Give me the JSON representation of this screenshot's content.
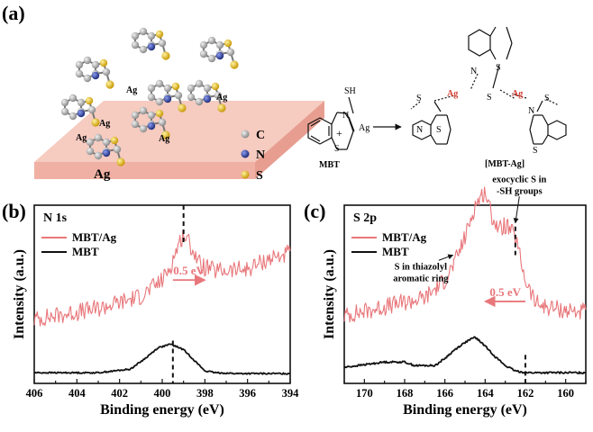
{
  "figure": {
    "panel_a": {
      "label": "(a)",
      "surface_label": "Ag",
      "bond_labels": [
        "Ag",
        "Ag",
        "Ag",
        "Ag",
        "Ag"
      ],
      "atom_legend": [
        {
          "symbol": "C",
          "color": "#a8a8a8"
        },
        {
          "symbol": "N",
          "color": "#2e3f9e"
        },
        {
          "symbol": "S",
          "color": "#e8c21a"
        }
      ],
      "reaction": {
        "reactant_name": "MBT",
        "reactant_sh": "SH",
        "reactant_ring_s": "S",
        "reactant_ring_n": "N",
        "plus": "+",
        "metal": "Ag",
        "product_name": "[MBT-Ag]",
        "product_atoms": {
          "s_exo_left": "S",
          "n_left": "N",
          "s_ring_left": "S",
          "ag_left": "Ag",
          "n_mid": "N",
          "s_ring_mid": "S",
          "s_exo_mid": "S",
          "ag_right": "Ag",
          "n_right": "N",
          "s_ring_right": "S",
          "s_exo_right": "S"
        }
      }
    },
    "panel_b_label": "(b)",
    "panel_c_label": "(c)"
  },
  "chart_data": [
    {
      "panel": "(b)",
      "type": "line",
      "title": "N 1s",
      "xlabel": "Binding energy (eV)",
      "ylabel": "Intensity (a.u.)",
      "x_reversed": true,
      "xlim": [
        406,
        394
      ],
      "xticks": [
        406,
        404,
        402,
        400,
        398,
        396,
        394
      ],
      "y_ticks_labeled": false,
      "legend_position": "top-left",
      "series": [
        {
          "name": "MBT/Ag",
          "color": "#e8777b",
          "noise": 0.05,
          "x": [
            406,
            403,
            401,
            400,
            399.6,
            399.3,
            399.0,
            398.6,
            398.2,
            397.5,
            396,
            395,
            394
          ],
          "y": [
            0.36,
            0.42,
            0.49,
            0.58,
            0.66,
            0.76,
            0.84,
            0.76,
            0.66,
            0.63,
            0.64,
            0.7,
            0.73
          ]
        },
        {
          "name": "MBT",
          "color": "#111111",
          "noise": 0.004,
          "x": [
            406,
            403,
            401.5,
            400.8,
            400.2,
            399.6,
            399.0,
            398.5,
            398.0,
            397.5,
            396.5,
            394
          ],
          "y": [
            0.06,
            0.06,
            0.08,
            0.14,
            0.2,
            0.22,
            0.19,
            0.13,
            0.07,
            0.06,
            0.055,
            0.055
          ]
        }
      ],
      "annotations": [
        {
          "type": "vline",
          "x": 399.0,
          "y_from": 0.78,
          "y_to": 1.0
        },
        {
          "type": "vline",
          "x": 399.5,
          "y_from": 0.0,
          "y_to": 0.24
        },
        {
          "type": "arrow",
          "text": "0.5 eV",
          "x_from": 399.5,
          "x_to": 398.0,
          "y": 0.58
        }
      ]
    },
    {
      "panel": "(c)",
      "type": "line",
      "title": "S 2p",
      "xlabel": "Binding energy (eV)",
      "ylabel": "Intensity (a.u.)",
      "x_reversed": true,
      "xlim": [
        171,
        159
      ],
      "xticks": [
        170,
        168,
        166,
        164,
        162,
        160
      ],
      "y_ticks_labeled": false,
      "legend_position": "top-left",
      "series": [
        {
          "name": "MBT/Ag",
          "color": "#e8777b",
          "noise": 0.05,
          "x": [
            171,
            169,
            167,
            166,
            165.5,
            165,
            164.5,
            164.0,
            163.7,
            163.3,
            163.0,
            162.5,
            162.0,
            161.5,
            161,
            160,
            159
          ],
          "y": [
            0.38,
            0.43,
            0.48,
            0.58,
            0.68,
            0.82,
            1.0,
            1.08,
            0.95,
            0.86,
            0.89,
            0.82,
            0.58,
            0.45,
            0.43,
            0.41,
            0.4
          ]
        },
        {
          "name": "MBT",
          "color": "#111111",
          "noise": 0.005,
          "x": [
            171,
            169,
            168,
            167.5,
            166.5,
            166,
            165.5,
            165.0,
            164.5,
            164.0,
            163.5,
            163.0,
            162.5,
            162.0,
            161,
            159
          ],
          "y": [
            0.09,
            0.12,
            0.12,
            0.1,
            0.1,
            0.14,
            0.19,
            0.23,
            0.26,
            0.21,
            0.15,
            0.1,
            0.07,
            0.06,
            0.06,
            0.06
          ]
        }
      ],
      "annotations": [
        {
          "type": "vline",
          "x": 162.5,
          "y_from": 0.72,
          "y_to": 0.88
        },
        {
          "type": "vline",
          "x": 162.0,
          "y_from": 0.0,
          "y_to": 0.16
        },
        {
          "type": "arrow",
          "text": "0.5 eV",
          "x_from": 162.0,
          "x_to": 164.0,
          "y": 0.46
        },
        {
          "type": "label",
          "lines": [
            "S  in thiazolyl",
            "aromatic ring"
          ],
          "x": 167.2,
          "y": 0.64,
          "arrow_to": [
            165.6,
            0.72
          ]
        },
        {
          "type": "label",
          "lines": [
            "exocyclic S in",
            "-SH groups"
          ],
          "x": 162.3,
          "y": 1.13,
          "arrow_to": [
            162.5,
            0.9
          ]
        }
      ]
    }
  ]
}
